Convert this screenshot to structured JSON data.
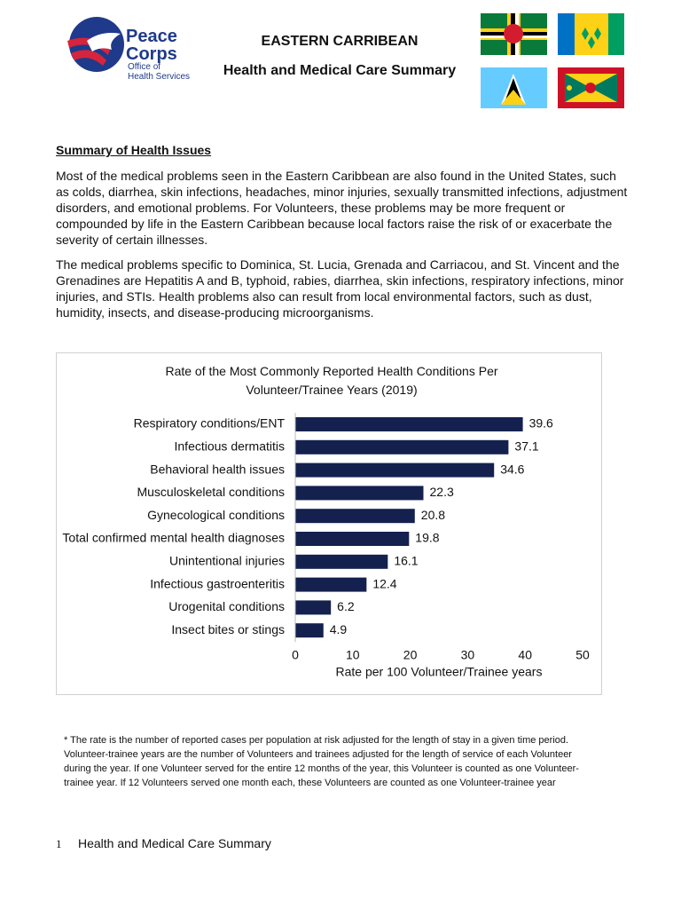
{
  "logo": {
    "line1": "Peace",
    "line2": "Corps",
    "line3": "Office of",
    "line4": "Health Services"
  },
  "header": {
    "title": "EASTERN CARRIBEAN",
    "subtitle": "Health and Medical Care Summary"
  },
  "section": {
    "heading": "Summary of Health Issues",
    "paragraphs": [
      "Most of the medical problems seen in the Eastern Caribbean are also found in the United States, such as colds, diarrhea, skin infections, headaches, minor injuries, sexually transmitted infections, adjustment disorders, and emotional problems. For Volunteers, these problems may be more frequent or compounded by life in the Eastern Caribbean because local factors raise the risk of or exacerbate the severity of certain illnesses.",
      "The medical problems specific to Dominica, St. Lucia, Grenada and Carriacou, and St. Vincent and the Grenadines are Hepatitis A and B, typhoid, rabies, diarrhea, skin infections, respiratory infections, minor injuries, and STIs. Health problems also can result from local environmental factors, such as dust, humidity, insects, and disease-producing microorganisms."
    ]
  },
  "chart_data": {
    "type": "hbar",
    "title": "Rate of the Most Commonly Reported Health Conditions Per Volunteer/Trainee Years (2019)",
    "x_label": "Rate per 100 Volunteer/Trainee years",
    "categories": [
      "Respiratory conditions/ENT",
      "Infectious dermatitis",
      "Behavioral health issues",
      "Musculoskeletal conditions",
      "Gynecological conditions",
      "Total confirmed mental health diagnoses",
      "Unintentional injuries",
      "Infectious gastroenteritis",
      "Urogenital conditions",
      "Insect bites or stings"
    ],
    "values": [
      39.6,
      37.1,
      34.6,
      22.3,
      20.8,
      19.8,
      16.1,
      12.4,
      6.2,
      4.9
    ],
    "color": "#14214f",
    "xlim": [
      0,
      50
    ],
    "xticks": [
      0,
      10,
      20,
      30,
      40,
      50
    ],
    "grid": false
  },
  "footnote": "* The rate is the number of reported cases per population at risk adjusted for the length of stay in a given time period. Volunteer-trainee years are the number of Volunteers and trainees adjusted for the length of service of each Volunteer during the year. If one Volunteer served for the entire 12 months of the year, this Volunteer is counted as one Volunteer-trainee year. If 12 Volunteers served one month each, these Volunteers are counted as one Volunteer-trainee year",
  "footer": {
    "page": "1",
    "text": "Health and Medical Care Summary"
  }
}
